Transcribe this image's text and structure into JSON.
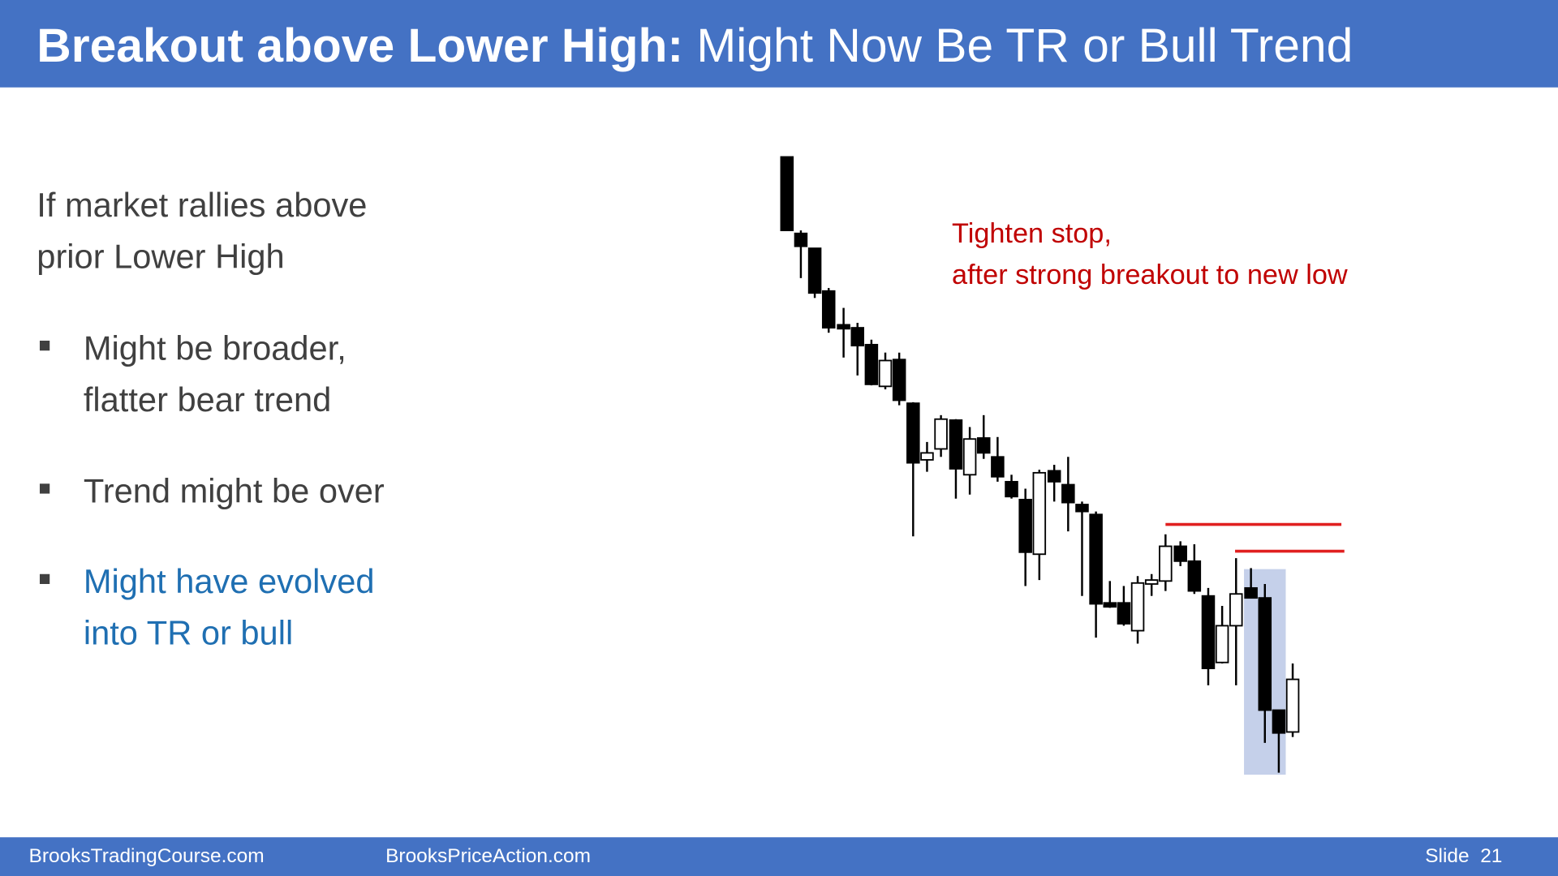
{
  "header": {
    "title_bold": "Breakout above Lower High:",
    "title_rest": " Might Now Be TR or Bull Trend"
  },
  "intro": {
    "lines": [
      "If market rallies above",
      "prior Lower High"
    ]
  },
  "bullets": [
    {
      "lines": [
        "Might be broader,",
        "flatter bear trend"
      ]
    },
    {
      "lines": [
        "Trend might be over"
      ]
    },
    {
      "lines": [
        "Might have evolved",
        "into TR or bull"
      ]
    }
  ],
  "annotation": {
    "lines": [
      "Tighten stop,",
      "after strong breakout to new low"
    ]
  },
  "footer": {
    "left": "BrooksTradingCourse.com",
    "center": "BrooksPriceAction.com",
    "slide": "Slide  21"
  }
}
